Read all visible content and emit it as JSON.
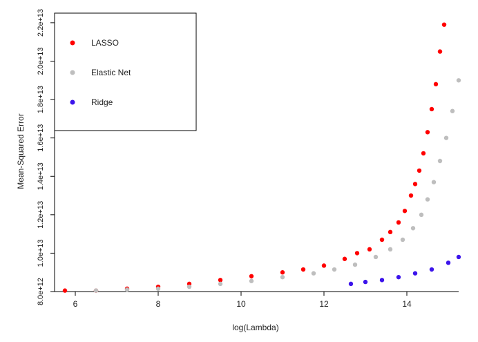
{
  "chart_data": {
    "type": "scatter",
    "title": "",
    "xlabel": "log(Lambda)",
    "ylabel": "Mean-Squared Error",
    "xlim": [
      5.5,
      15.25
    ],
    "ylim": [
      8000000000000.0,
      22500000000000.0
    ],
    "x_ticks": [
      6,
      8,
      10,
      12,
      14
    ],
    "x_tick_labels": [
      "6",
      "8",
      "10",
      "12",
      "14"
    ],
    "y_ticks": [
      8000000000000.0,
      10000000000000.0,
      12000000000000.0,
      14000000000000.0,
      16000000000000.0,
      18000000000000.0,
      20000000000000.0,
      22000000000000.0
    ],
    "y_tick_labels": [
      "8.0e+12",
      "1.0e+13",
      "1.2e+13",
      "1.4e+13",
      "1.6e+13",
      "1.8e+13",
      "2.0e+13",
      "2.2e+13"
    ],
    "grid": false,
    "legend_position": "top-left",
    "series": [
      {
        "name": "LASSO",
        "color": "#ff0000",
        "x": [
          5.75,
          6.5,
          7.25,
          8.0,
          8.75,
          9.5,
          10.25,
          11.0,
          11.5,
          12.0,
          12.5,
          12.8,
          13.1,
          13.4,
          13.6,
          13.8,
          13.95,
          14.1,
          14.2,
          14.3,
          14.4,
          14.5,
          14.6,
          14.7,
          14.8,
          14.9
        ],
        "y": [
          8050000000000.0,
          8050000000000.0,
          8150000000000.0,
          8250000000000.0,
          8400000000000.0,
          8600000000000.0,
          8800000000000.0,
          9000000000000.0,
          9150000000000.0,
          9350000000000.0,
          9700000000000.0,
          10000000000000.0,
          10200000000000.0,
          10700000000000.0,
          11100000000000.0,
          11600000000000.0,
          12200000000000.0,
          13000000000000.0,
          13600000000000.0,
          14300000000000.0,
          15200000000000.0,
          16300000000000.0,
          17500000000000.0,
          18800000000000.0,
          20500000000000.0,
          21900000000000.0
        ]
      },
      {
        "name": "Elastic Net",
        "color": "#bebebe",
        "x": [
          6.5,
          7.25,
          8.0,
          8.75,
          9.5,
          10.25,
          11.0,
          11.75,
          12.25,
          12.75,
          13.25,
          13.6,
          13.9,
          14.15,
          14.35,
          14.5,
          14.65,
          14.8,
          14.95,
          15.1,
          15.25
        ],
        "y": [
          8050000000000.0,
          8100000000000.0,
          8150000000000.0,
          8250000000000.0,
          8400000000000.0,
          8550000000000.0,
          8750000000000.0,
          8950000000000.0,
          9150000000000.0,
          9400000000000.0,
          9800000000000.0,
          10200000000000.0,
          10700000000000.0,
          11300000000000.0,
          12000000000000.0,
          12800000000000.0,
          13700000000000.0,
          14800000000000.0,
          16000000000000.0,
          17400000000000.0,
          19000000000000.0
        ]
      },
      {
        "name": "Ridge",
        "color": "#3c14eb",
        "x": [
          12.65,
          13.0,
          13.4,
          13.8,
          14.2,
          14.6,
          15.0,
          15.25
        ],
        "y": [
          8400000000000.0,
          8500000000000.0,
          8600000000000.0,
          8750000000000.0,
          8950000000000.0,
          9150000000000.0,
          9500000000000.0,
          9800000000000.0
        ]
      }
    ]
  }
}
